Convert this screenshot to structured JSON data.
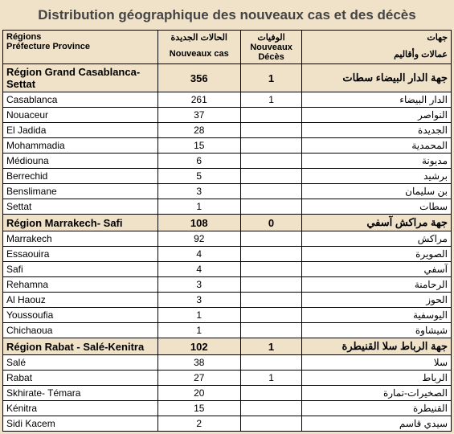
{
  "title": "Distribution géographique des nouveaux cas et des décès",
  "headers": {
    "region_fr1": "Régions",
    "region_fr2": "Préfecture Province",
    "cases_ar": "الحالات الجديدة",
    "cases_fr": "Nouveaux cas",
    "deaths_ar": "الوفيات",
    "deaths_fr1": "Nouveaux",
    "deaths_fr2": "Décès",
    "region_ar1": "جهات",
    "region_ar2": "عمالات وأقاليم"
  },
  "colors": {
    "background": "#f0e2c8",
    "row_bg": "#ffffff",
    "border": "#000000"
  },
  "rows": [
    {
      "type": "region",
      "name": "Région Grand Casablanca-Settat",
      "cas": "356",
      "deces": "1",
      "ar": "جهة الدار البيضاء سطات"
    },
    {
      "type": "row",
      "name": "Casablanca",
      "cas": "261",
      "deces": "1",
      "ar": "الدار البيضاء"
    },
    {
      "type": "row",
      "name": "Nouaceur",
      "cas": "37",
      "deces": "",
      "ar": "النواصر"
    },
    {
      "type": "row",
      "name": "El Jadida",
      "cas": "28",
      "deces": "",
      "ar": "الجديدة"
    },
    {
      "type": "row",
      "name": "Mohammadia",
      "cas": "15",
      "deces": "",
      "ar": "المحمدية"
    },
    {
      "type": "row",
      "name": "Médiouna",
      "cas": "6",
      "deces": "",
      "ar": "مديونة"
    },
    {
      "type": "row",
      "name": "Berrechid",
      "cas": "5",
      "deces": "",
      "ar": "برشيد"
    },
    {
      "type": "row",
      "name": "Benslimane",
      "cas": "3",
      "deces": "",
      "ar": "بن سليمان"
    },
    {
      "type": "row",
      "name": "Settat",
      "cas": "1",
      "deces": "",
      "ar": "سطات"
    },
    {
      "type": "region",
      "name": "Région Marrakech- Safi",
      "cas": "108",
      "deces": "0",
      "ar": "جهة مراكش آسفي"
    },
    {
      "type": "row",
      "name": "Marrakech",
      "cas": "92",
      "deces": "",
      "ar": "مراكش"
    },
    {
      "type": "row",
      "name": "Essaouira",
      "cas": "4",
      "deces": "",
      "ar": "الصويرة"
    },
    {
      "type": "row",
      "name": "Safi",
      "cas": "4",
      "deces": "",
      "ar": "آسفي"
    },
    {
      "type": "row",
      "name": "Rehamna",
      "cas": "3",
      "deces": "",
      "ar": "الرحامنة"
    },
    {
      "type": "row",
      "name": "Al  Haouz",
      "cas": "3",
      "deces": "",
      "ar": "الحوز"
    },
    {
      "type": "row",
      "name": "Youssoufia",
      "cas": "1",
      "deces": "",
      "ar": "اليوسفية"
    },
    {
      "type": "row",
      "name": "Chichaoua",
      "cas": "1",
      "deces": "",
      "ar": "شيشاوة"
    },
    {
      "type": "region",
      "name": "Région Rabat - Salé-Kenitra",
      "cas": "102",
      "deces": "1",
      "ar": "جهة الرباط سلا القنيطرة"
    },
    {
      "type": "row",
      "name": "Salé",
      "cas": "38",
      "deces": "",
      "ar": "سلا"
    },
    {
      "type": "row",
      "name": "Rabat",
      "cas": "27",
      "deces": "1",
      "ar": "الرباط"
    },
    {
      "type": "row",
      "name": "Skhirate- Témara",
      "cas": "20",
      "deces": "",
      "ar": "الصخيرات-تمارة"
    },
    {
      "type": "row",
      "name": "Kénitra",
      "cas": "15",
      "deces": "",
      "ar": "القنيطرة"
    },
    {
      "type": "row",
      "name": "Sidi Kacem",
      "cas": "2",
      "deces": "",
      "ar": "سيدي قاسم"
    }
  ]
}
